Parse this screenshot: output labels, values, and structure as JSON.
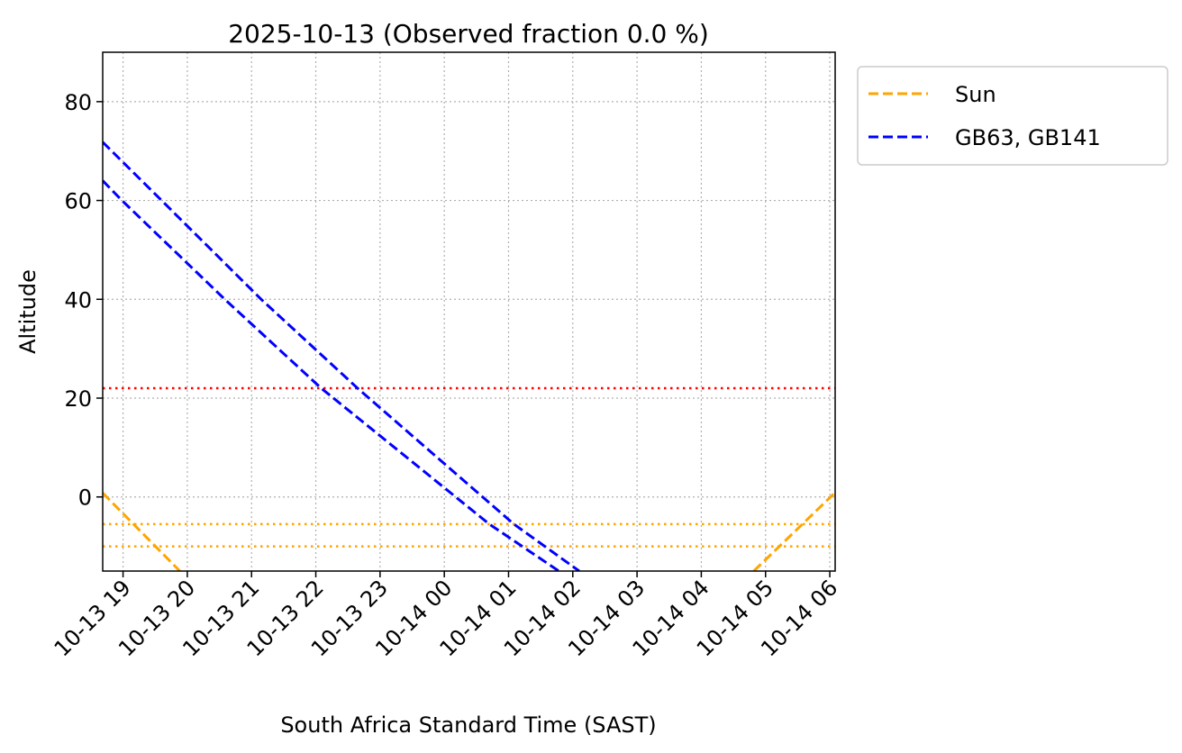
{
  "chart_data": {
    "type": "line",
    "title": "2025-10-13 (Observed fraction 0.0 %)",
    "xlabel": "South Africa Standard Time (SAST)",
    "ylabel": "Altitude",
    "xlim": [
      "2025-10-13 18:41",
      "2025-10-14 06:05"
    ],
    "ylim": [
      -15,
      90
    ],
    "grid": true,
    "legend_position": "outside-top-right",
    "yticks": [
      0,
      20,
      40,
      60,
      80
    ],
    "xticks": [
      {
        "t": "2025-10-13 19:00",
        "label": "10-13 19"
      },
      {
        "t": "2025-10-13 20:00",
        "label": "10-13 20"
      },
      {
        "t": "2025-10-13 21:00",
        "label": "10-13 21"
      },
      {
        "t": "2025-10-13 22:00",
        "label": "10-13 22"
      },
      {
        "t": "2025-10-13 23:00",
        "label": "10-13 23"
      },
      {
        "t": "2025-10-14 00:00",
        "label": "10-14 00"
      },
      {
        "t": "2025-10-14 01:00",
        "label": "10-14 01"
      },
      {
        "t": "2025-10-14 02:00",
        "label": "10-14 02"
      },
      {
        "t": "2025-10-14 03:00",
        "label": "10-14 03"
      },
      {
        "t": "2025-10-14 04:00",
        "label": "10-14 04"
      },
      {
        "t": "2025-10-14 05:00",
        "label": "10-14 05"
      },
      {
        "t": "2025-10-14 06:00",
        "label": "10-14 06"
      }
    ],
    "series": [
      {
        "name": "Sun",
        "color": "#FFA500",
        "style": "dashed",
        "legend": true,
        "segments": [
          [
            [
              "2025-10-13 18:41",
              0.8
            ],
            [
              "2025-10-13 19:53",
              -15
            ]
          ],
          [
            [
              "2025-10-14 04:49",
              -15
            ],
            [
              "2025-10-14 06:05",
              0.9
            ]
          ]
        ]
      },
      {
        "name": "GB63, GB141",
        "color": "#0000FF",
        "style": "dashed",
        "legend": true,
        "segments": [
          [
            [
              "2025-10-13 18:41",
              71.8
            ],
            [
              "2025-10-13 19:36",
              60
            ],
            [
              "2025-10-13 21:09",
              40
            ],
            [
              "2025-10-13 22:39",
              22
            ],
            [
              "2025-10-14 01:05",
              -5.5
            ],
            [
              "2025-10-14 02:06",
              -15
            ]
          ]
        ]
      },
      {
        "name": "",
        "color": "#0000FF",
        "style": "dashed",
        "legend": false,
        "segments": [
          [
            [
              "2025-10-13 18:41",
              64
            ],
            [
              "2025-10-13 18:59",
              60
            ],
            [
              "2025-10-13 20:35",
              40
            ],
            [
              "2025-10-13 22:05",
              22
            ],
            [
              "2025-10-14 00:42",
              -5.5
            ],
            [
              "2025-10-14 01:47",
              -15
            ]
          ]
        ]
      }
    ],
    "hlines": [
      {
        "y": 22,
        "color": "#FF0000",
        "style": "dotted"
      },
      {
        "y": -5.5,
        "color": "#FFA500",
        "style": "dotted"
      },
      {
        "y": -10,
        "color": "#FFA500",
        "style": "dotted"
      }
    ]
  }
}
